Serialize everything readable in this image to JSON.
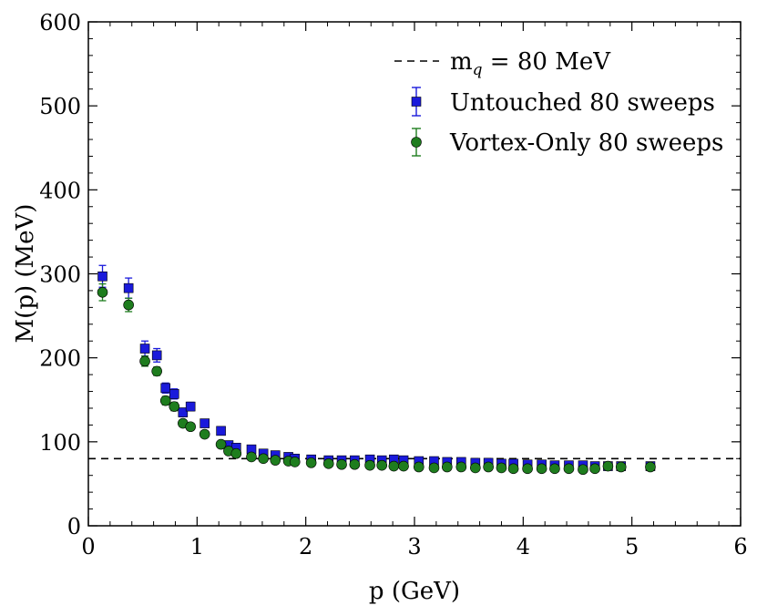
{
  "chart_data": {
    "type": "scatter",
    "xlabel": "p (GeV)",
    "ylabel": "M(p) (MeV)",
    "xlim": [
      0,
      6
    ],
    "ylim": [
      0,
      600
    ],
    "x_ticks": [
      "0",
      "1",
      "2",
      "3",
      "4",
      "5",
      "6"
    ],
    "y_ticks": [
      "0",
      "100",
      "200",
      "300",
      "400",
      "500",
      "600"
    ],
    "grid": false,
    "legend_position": "top-right",
    "reference_line": {
      "label_main": "m",
      "label_sub": "q",
      "label_rest": " = 80 MeV",
      "y": 80,
      "style": "dashed",
      "color": "#000000"
    },
    "series": [
      {
        "name": "Untouched 80 sweeps",
        "marker": "square",
        "color": "#1a1adb",
        "points": [
          [
            0.13,
            297,
            13
          ],
          [
            0.37,
            283,
            12
          ],
          [
            0.52,
            211,
            9
          ],
          [
            0.63,
            203,
            8
          ],
          [
            0.71,
            164,
            6
          ],
          [
            0.79,
            157,
            6
          ],
          [
            0.87,
            135,
            5
          ],
          [
            0.94,
            142,
            5
          ],
          [
            1.07,
            122,
            4
          ],
          [
            1.22,
            113,
            4
          ],
          [
            1.29,
            96,
            3
          ],
          [
            1.36,
            93,
            3
          ],
          [
            1.5,
            91,
            2
          ],
          [
            1.61,
            86,
            2
          ],
          [
            1.72,
            84,
            2
          ],
          [
            1.84,
            82,
            2
          ],
          [
            1.9,
            80,
            2
          ],
          [
            2.05,
            79,
            2
          ],
          [
            2.21,
            78,
            2
          ],
          [
            2.33,
            78,
            2
          ],
          [
            2.45,
            78,
            2
          ],
          [
            2.59,
            79,
            2
          ],
          [
            2.7,
            78,
            2
          ],
          [
            2.81,
            79,
            2
          ],
          [
            2.9,
            78,
            2
          ],
          [
            3.04,
            77,
            2
          ],
          [
            3.18,
            77,
            2
          ],
          [
            3.3,
            76,
            2
          ],
          [
            3.43,
            76,
            2
          ],
          [
            3.56,
            75,
            2
          ],
          [
            3.68,
            75,
            2
          ],
          [
            3.8,
            74,
            2
          ],
          [
            3.91,
            74,
            2
          ],
          [
            4.04,
            73,
            2
          ],
          [
            4.17,
            73,
            2
          ],
          [
            4.29,
            72,
            2
          ],
          [
            4.42,
            72,
            2
          ],
          [
            4.55,
            72,
            2
          ],
          [
            4.66,
            71,
            2
          ],
          [
            4.78,
            71,
            2
          ],
          [
            4.9,
            71,
            2
          ],
          [
            5.17,
            71,
            2
          ]
        ]
      },
      {
        "name": "Vortex-Only 80 sweeps",
        "marker": "circle",
        "color": "#1e7d1e",
        "points": [
          [
            0.13,
            278,
            10
          ],
          [
            0.37,
            263,
            8
          ],
          [
            0.52,
            196,
            6
          ],
          [
            0.63,
            184,
            5
          ],
          [
            0.71,
            149,
            5
          ],
          [
            0.79,
            142,
            5
          ],
          [
            0.87,
            122,
            4
          ],
          [
            0.94,
            118,
            4
          ],
          [
            1.07,
            109,
            3
          ],
          [
            1.22,
            97,
            3
          ],
          [
            1.29,
            89,
            3
          ],
          [
            1.36,
            86,
            3
          ],
          [
            1.5,
            82,
            2
          ],
          [
            1.61,
            80,
            2
          ],
          [
            1.72,
            78,
            2
          ],
          [
            1.84,
            77,
            2
          ],
          [
            1.9,
            76,
            2
          ],
          [
            2.05,
            75,
            2
          ],
          [
            2.21,
            74,
            2
          ],
          [
            2.33,
            73,
            2
          ],
          [
            2.45,
            73,
            2
          ],
          [
            2.59,
            72,
            2
          ],
          [
            2.7,
            72,
            2
          ],
          [
            2.81,
            71,
            2
          ],
          [
            2.9,
            71,
            2
          ],
          [
            3.04,
            70,
            2
          ],
          [
            3.18,
            69,
            2
          ],
          [
            3.3,
            70,
            2
          ],
          [
            3.43,
            70,
            2
          ],
          [
            3.56,
            69,
            2
          ],
          [
            3.68,
            70,
            2
          ],
          [
            3.8,
            69,
            2
          ],
          [
            3.91,
            68,
            2
          ],
          [
            4.04,
            68,
            2
          ],
          [
            4.17,
            68,
            2
          ],
          [
            4.29,
            68,
            2
          ],
          [
            4.42,
            68,
            2
          ],
          [
            4.55,
            67,
            2
          ],
          [
            4.66,
            68,
            2
          ],
          [
            4.78,
            71,
            2
          ],
          [
            4.9,
            70,
            2
          ],
          [
            5.17,
            70,
            2
          ]
        ]
      }
    ]
  }
}
